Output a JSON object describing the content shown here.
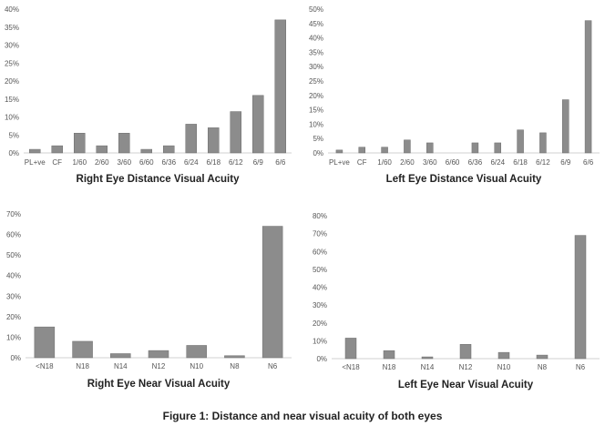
{
  "caption": "Figure 1: Distance and near visual acuity of both eyes",
  "bar_color": "#8c8c8c",
  "chart_data": [
    {
      "type": "bar",
      "title": "Right Eye Distance Visual Acuity",
      "xlabel": "",
      "ylabel": "",
      "categories": [
        "PL+ve",
        "CF",
        "1/60",
        "2/60",
        "3/60",
        "6/60",
        "6/36",
        "6/24",
        "6/18",
        "6/12",
        "6/9",
        "6/6"
      ],
      "values": [
        1,
        2,
        5.5,
        2,
        5.5,
        1,
        2,
        8,
        7,
        11.5,
        16,
        37
      ],
      "ylim": [
        0,
        40
      ],
      "yticks": [
        "0%",
        "5%",
        "10%",
        "15%",
        "20%",
        "25%",
        "30%",
        "35%",
        "40%"
      ],
      "grid": false
    },
    {
      "type": "bar",
      "title": "Left Eye Distance Visual Acuity",
      "xlabel": "",
      "ylabel": "",
      "categories": [
        "PL+ve",
        "CF",
        "1/60",
        "2/60",
        "3/60",
        "6/60",
        "6/36",
        "6/24",
        "6/18",
        "6/12",
        "6/9",
        "6/6"
      ],
      "values": [
        1,
        2,
        2,
        4.5,
        3.5,
        0,
        3.5,
        3.5,
        8,
        7,
        18.5,
        46
      ],
      "ylim": [
        0,
        50
      ],
      "yticks": [
        "0%",
        "5%",
        "10%",
        "15%",
        "20%",
        "25%",
        "30%",
        "35%",
        "40%",
        "45%",
        "50%"
      ],
      "grid": false
    },
    {
      "type": "bar",
      "title": "Right Eye Near Visual Acuity",
      "xlabel": "",
      "ylabel": "",
      "categories": [
        "<N18",
        "N18",
        "N14",
        "N12",
        "N10",
        "N8",
        "N6"
      ],
      "values": [
        15,
        8,
        2,
        3.5,
        6,
        1,
        64
      ],
      "ylim": [
        0,
        70
      ],
      "yticks": [
        "0%",
        "10%",
        "20%",
        "30%",
        "40%",
        "50%",
        "60%",
        "70%"
      ],
      "grid": false
    },
    {
      "type": "bar",
      "title": "Left Eye Near Visual Acuity",
      "xlabel": "",
      "ylabel": "",
      "categories": [
        "<N18",
        "N18",
        "N14",
        "N12",
        "N10",
        "N8",
        "N6"
      ],
      "values": [
        11.5,
        4.5,
        1,
        8,
        3.5,
        2,
        69
      ],
      "ylim": [
        0,
        80
      ],
      "yticks": [
        "0%",
        "10%",
        "20%",
        "30%",
        "40%",
        "50%",
        "60%",
        "70%",
        "80%"
      ],
      "grid": false
    }
  ]
}
